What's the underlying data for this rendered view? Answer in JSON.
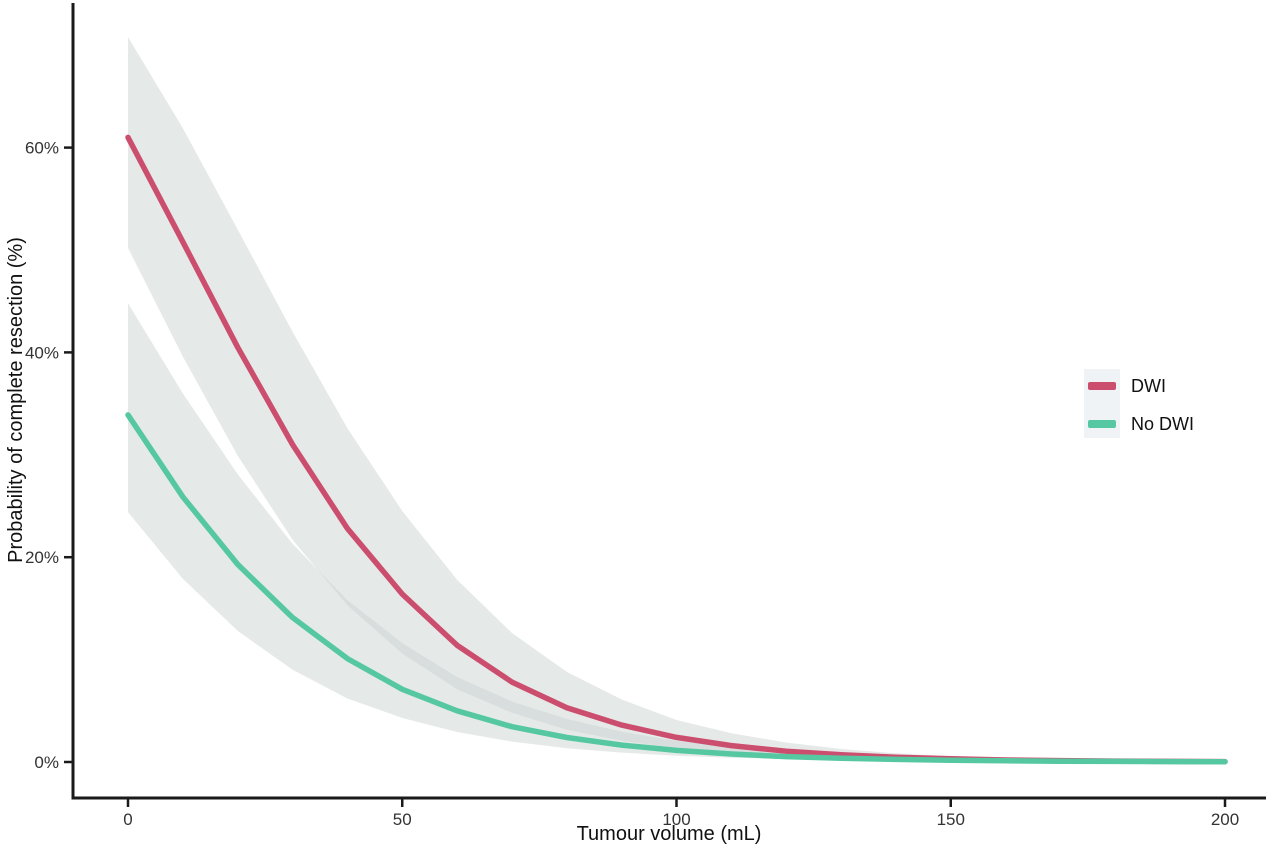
{
  "figure_bg": "#ffffff",
  "axes": {
    "x_title": "Tumour volume (mL)",
    "y_title": "Probability of complete resection (%)",
    "axis_color": "#1a1a1a",
    "tick_label_color": "#333333",
    "x_ticks": [
      {
        "label": "0",
        "value": 0
      },
      {
        "label": "50",
        "value": 50
      },
      {
        "label": "100",
        "value": 100
      },
      {
        "label": "150",
        "value": 150
      },
      {
        "label": "200",
        "value": 200
      }
    ],
    "y_ticks": [
      {
        "label": "0%",
        "value": 0
      },
      {
        "label": "20%",
        "value": 20
      },
      {
        "label": "40%",
        "value": 40
      },
      {
        "label": "60%",
        "value": 60
      }
    ]
  },
  "legend": {
    "key_bg": "#f0f3f5",
    "items": [
      {
        "label": "DWI",
        "color": "#cb4e6e"
      },
      {
        "label": "No DWI",
        "color": "#56c8a1"
      }
    ]
  },
  "chart_data": {
    "type": "line",
    "title": "",
    "xlabel": "Tumour volume (mL)",
    "ylabel": "Probability of complete resection (%)",
    "xlim": [
      0,
      200
    ],
    "ylim": [
      0,
      72
    ],
    "grid": false,
    "legend_position": "right",
    "band_color": "#cbd4d1",
    "band_opacity": 0.5,
    "x": [
      0,
      10,
      20,
      30,
      40,
      50,
      60,
      70,
      80,
      90,
      100,
      110,
      120,
      130,
      140,
      150,
      160,
      170,
      180,
      190,
      200
    ],
    "series": [
      {
        "name": "DWI",
        "color": "#cb4e6e",
        "values": [
          61.0,
          50.8,
          40.5,
          31.0,
          22.8,
          16.4,
          11.4,
          7.8,
          5.3,
          3.6,
          2.4,
          1.6,
          1.05,
          0.7,
          0.46,
          0.31,
          0.2,
          0.134,
          0.088,
          0.058,
          0.038
        ],
        "ci_upper": [
          70.8,
          61.9,
          52.0,
          42.0,
          32.6,
          24.5,
          17.8,
          12.6,
          8.8,
          6.1,
          4.1,
          2.8,
          1.9,
          1.27,
          0.85,
          0.57,
          0.38,
          0.256,
          0.171,
          0.114,
          0.077
        ],
        "ci_lower": [
          50.2,
          39.6,
          29.9,
          21.7,
          15.3,
          10.6,
          7.1,
          4.8,
          3.15,
          2.07,
          1.36,
          0.89,
          0.58,
          0.38,
          0.247,
          0.161,
          0.105,
          0.068,
          0.044,
          0.029,
          0.019
        ]
      },
      {
        "name": "No DWI",
        "color": "#56c8a1",
        "values": [
          33.9,
          25.9,
          19.3,
          14.1,
          10.1,
          7.1,
          5.0,
          3.45,
          2.39,
          1.65,
          1.13,
          0.78,
          0.53,
          0.365,
          0.25,
          0.17,
          0.117,
          0.08,
          0.055,
          0.037,
          0.026
        ],
        "ci_upper": [
          44.8,
          36.0,
          28.1,
          21.3,
          15.8,
          11.6,
          8.3,
          5.9,
          4.2,
          2.95,
          2.06,
          1.44,
          1.0,
          0.7,
          0.487,
          0.34,
          0.235,
          0.163,
          0.114,
          0.079,
          0.055
        ],
        "ci_lower": [
          24.4,
          17.9,
          12.8,
          9.0,
          6.2,
          4.3,
          2.93,
          1.99,
          1.35,
          0.915,
          0.62,
          0.417,
          0.281,
          0.19,
          0.128,
          0.086,
          0.058,
          0.039,
          0.026,
          0.018,
          0.012
        ]
      }
    ]
  }
}
